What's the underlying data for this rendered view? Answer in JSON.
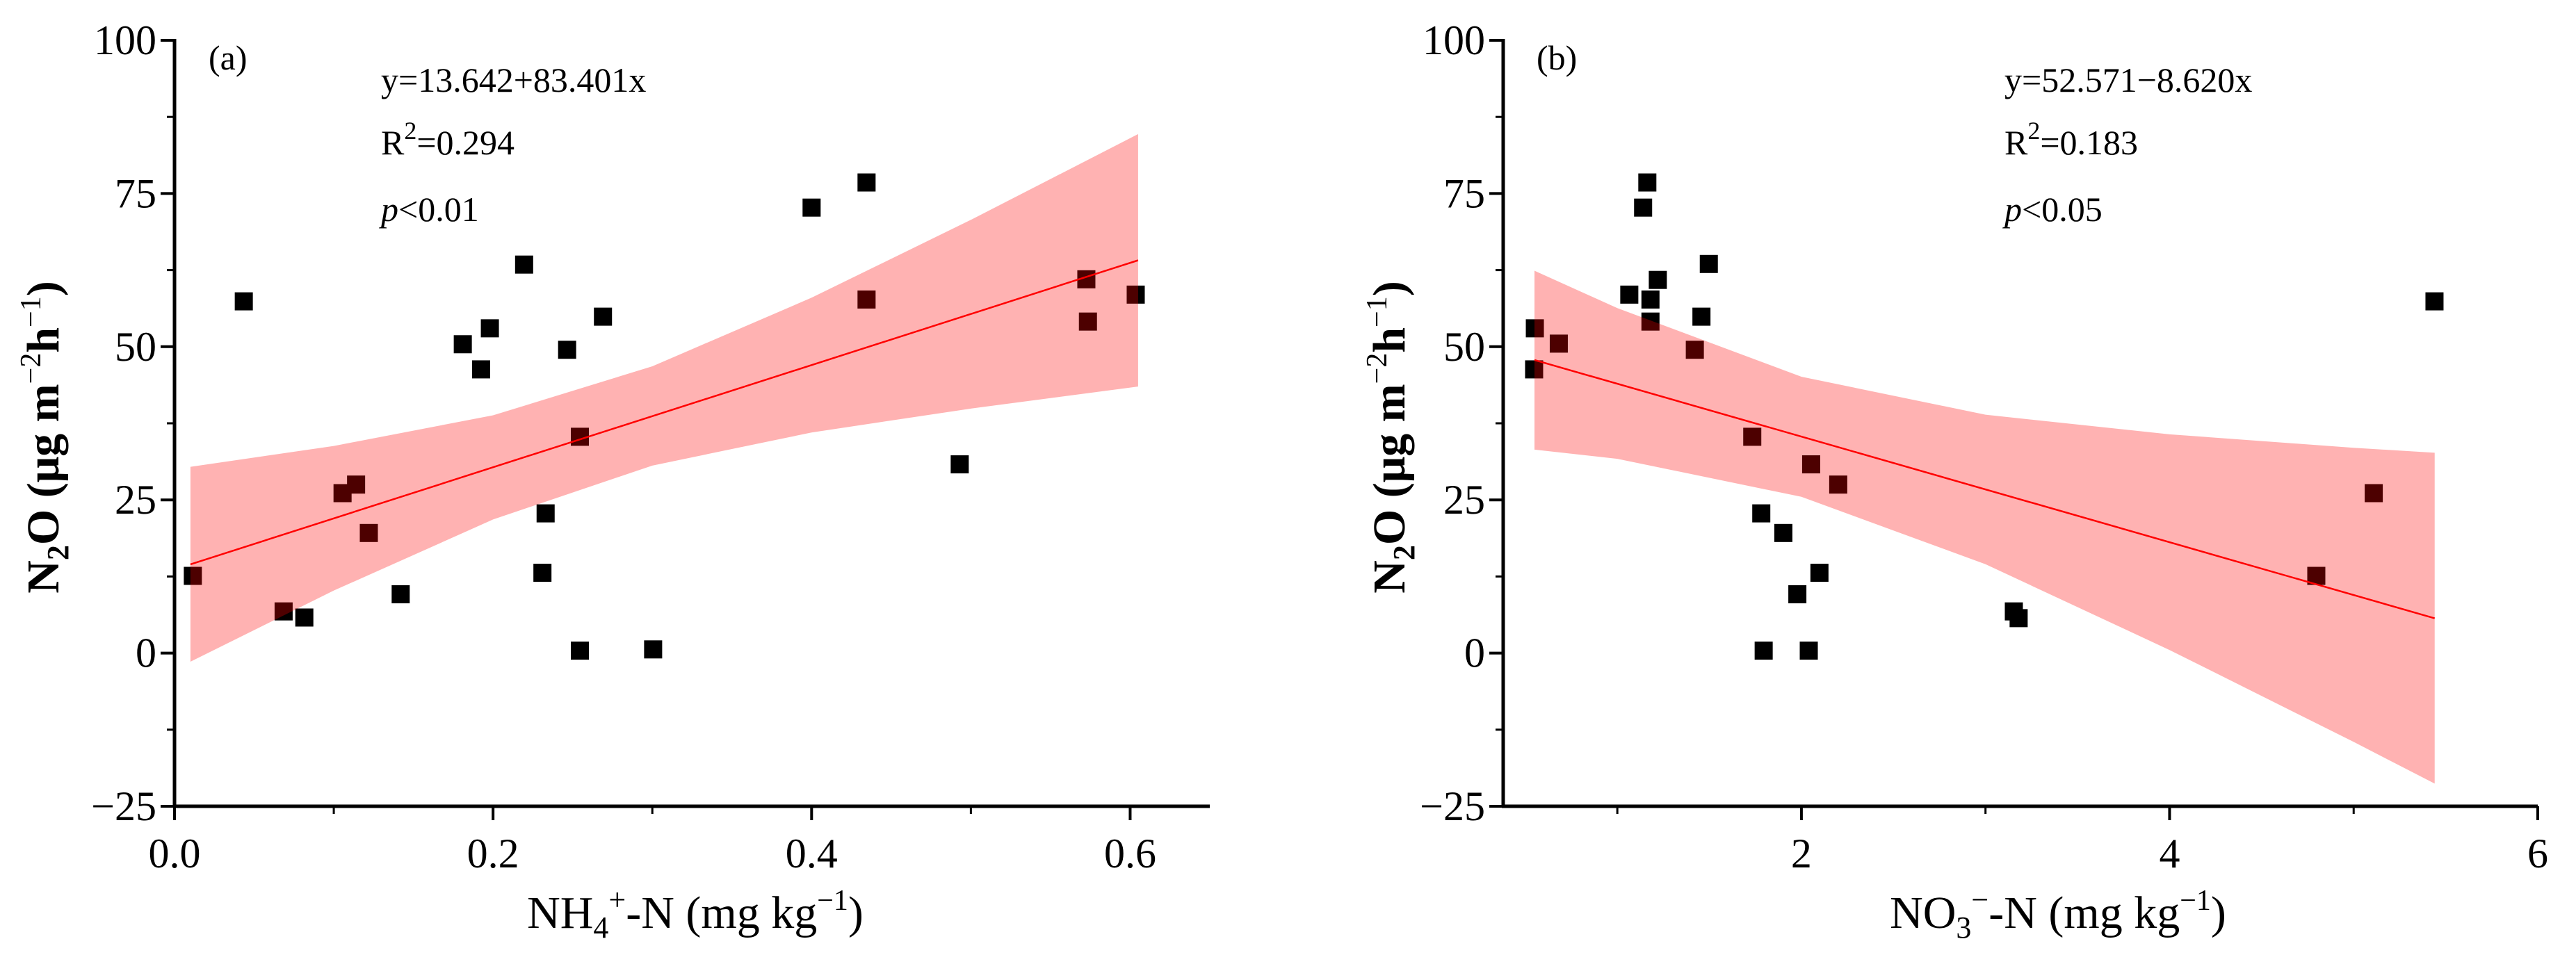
{
  "chart_data": [
    {
      "type": "scatter",
      "panel_label": "(a)",
      "xlabel": {
        "main": "NH",
        "sub": "4",
        "sup": "+",
        "rest": "-N (mg kg",
        "unit_sup": "−1",
        "close": ")"
      },
      "ylabel": {
        "main": "N",
        "sub": "2",
        "rest": "O (μg m",
        "sup1": "−2",
        "mid": "h",
        "sup2": "−1",
        "close": ")"
      },
      "xlim": [
        0,
        0.65
      ],
      "ylim": [
        -25,
        100
      ],
      "xticks": [
        "0.0",
        "0.2",
        "0.4",
        "0.6"
      ],
      "xtick_values": [
        0,
        0.2,
        0.4,
        0.6
      ],
      "xminor": [
        0.1,
        0.3,
        0.5
      ],
      "yticks": [
        "−25",
        "0",
        "25",
        "50",
        "75",
        "100"
      ],
      "ytick_values": [
        -25,
        0,
        25,
        50,
        75,
        100
      ],
      "yminor": [
        -12.5,
        12.5,
        37.5,
        62.5,
        87.5
      ],
      "grid": false,
      "annotations": {
        "equation": "y=13.642+83.401x",
        "r2_label": "R",
        "r2_sup": "2",
        "r2_value": "=0.294",
        "p_italic": "p",
        "p_value": "<0.01"
      },
      "colors": {
        "points": "#000000",
        "fit_line": "#ff0000",
        "band": "#ff0000"
      },
      "points": {
        "x": [
          0.0115,
          0.0435,
          0.0685,
          0.0815,
          0.1055,
          0.114,
          0.122,
          0.142,
          0.181,
          0.1925,
          0.198,
          0.2195,
          0.231,
          0.233,
          0.2465,
          0.2545,
          0.2545,
          0.269,
          0.3005,
          0.4,
          0.4345,
          0.4345,
          0.493,
          0.5725,
          0.5735,
          0.6035
        ],
        "y": [
          12.6,
          57.4,
          6.8,
          5.8,
          26.1,
          27.5,
          19.6,
          9.6,
          50.4,
          46.3,
          53.0,
          63.4,
          13.1,
          22.8,
          49.5,
          0.4,
          35.3,
          54.9,
          0.6,
          72.7,
          76.8,
          57.7,
          30.8,
          61.0,
          54.1,
          58.5
        ]
      },
      "fit": {
        "intercept": 13.642,
        "slope": 83.401,
        "x_range": [
          0.01,
          0.605
        ]
      },
      "confidence_band": {
        "x": [
          0.01,
          0.1,
          0.2,
          0.3,
          0.4,
          0.5,
          0.605
        ],
        "upper": [
          30.4,
          33.8,
          38.8,
          46.8,
          58.0,
          70.7,
          84.7
        ],
        "lower": [
          -1.4,
          10.2,
          21.8,
          30.6,
          36.0,
          39.9,
          43.5
        ]
      }
    },
    {
      "type": "scatter",
      "panel_label": "(b)",
      "xlabel": {
        "main": "NO",
        "sub": "3",
        "sup": "−",
        "rest": "-N (mg kg",
        "unit_sup": "−1",
        "close": ")"
      },
      "ylabel": {
        "main": "N",
        "sub": "2",
        "rest": "O (μg m",
        "sup1": "−2",
        "mid": "h",
        "sup2": "−1",
        "close": ")"
      },
      "xlim": [
        0.38,
        6
      ],
      "ylim": [
        -25,
        100
      ],
      "xticks": [
        "2",
        "4",
        "6"
      ],
      "xtick_values": [
        2,
        4,
        6
      ],
      "xminor": [
        1,
        3,
        5
      ],
      "yticks": [
        "−25",
        "0",
        "25",
        "50",
        "75",
        "100"
      ],
      "ytick_values": [
        -25,
        0,
        25,
        50,
        75,
        100
      ],
      "yminor": [
        -12.5,
        12.5,
        37.5,
        62.5,
        87.5
      ],
      "grid": false,
      "annotations": {
        "equation": "y=52.571−8.620x",
        "r2_label": "R",
        "r2_sup": "2",
        "r2_value": "=0.183",
        "p_italic": "p",
        "p_value": "<0.05"
      },
      "colors": {
        "points": "#000000",
        "fit_line": "#ff0000",
        "band": "#ff0000"
      },
      "points": {
        "x": [
          0.552,
          0.682,
          0.548,
          1.163,
          1.14,
          1.065,
          1.18,
          1.18,
          1.22,
          1.497,
          1.457,
          1.421,
          1.733,
          2.053,
          2.2,
          1.782,
          1.902,
          2.098,
          1.978,
          1.795,
          2.04,
          3.154,
          3.18,
          4.797,
          5.109,
          5.439
        ],
        "y": [
          53.0,
          50.5,
          46.3,
          76.8,
          72.7,
          58.5,
          57.7,
          54.1,
          60.9,
          63.5,
          54.9,
          49.5,
          35.3,
          30.8,
          27.5,
          22.8,
          19.6,
          13.1,
          9.6,
          0.4,
          0.4,
          6.8,
          5.7,
          12.6,
          26.1,
          57.4
        ]
      },
      "fit": {
        "intercept": 52.571,
        "slope": -8.62,
        "x_range": [
          0.55,
          5.44
        ]
      },
      "confidence_band": {
        "x": [
          0.55,
          1,
          2,
          3,
          4,
          5,
          5.44
        ],
        "upper": [
          62.4,
          56.3,
          45.1,
          38.9,
          35.7,
          33.5,
          32.7
        ],
        "lower": [
          33.2,
          31.7,
          25.5,
          14.5,
          0.5,
          -14.5,
          -21.3
        ]
      }
    }
  ]
}
